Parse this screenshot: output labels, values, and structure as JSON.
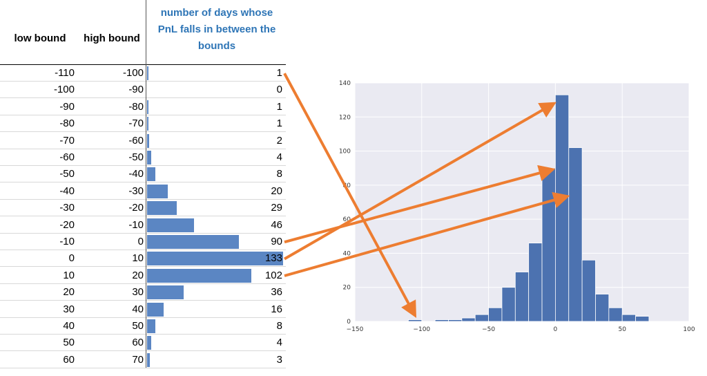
{
  "table": {
    "headers": {
      "low": "low bound",
      "high": "high bound",
      "count_lines": [
        "number of days whose",
        "PnL falls in between the",
        "bounds"
      ]
    },
    "rows": [
      {
        "low": "-110",
        "high": "-100",
        "count": "1"
      },
      {
        "low": "-100",
        "high": "-90",
        "count": "0"
      },
      {
        "low": "-90",
        "high": "-80",
        "count": "1"
      },
      {
        "low": "-80",
        "high": "-70",
        "count": "1"
      },
      {
        "low": "-70",
        "high": "-60",
        "count": "2"
      },
      {
        "low": "-60",
        "high": "-50",
        "count": "4"
      },
      {
        "low": "-50",
        "high": "-40",
        "count": "8"
      },
      {
        "low": "-40",
        "high": "-30",
        "count": "20"
      },
      {
        "low": "-30",
        "high": "-20",
        "count": "29"
      },
      {
        "low": "-20",
        "high": "-10",
        "count": "46"
      },
      {
        "low": "-10",
        "high": "0",
        "count": "90"
      },
      {
        "low": "0",
        "high": "10",
        "count": "133"
      },
      {
        "low": "10",
        "high": "20",
        "count": "102"
      },
      {
        "low": "20",
        "high": "30",
        "count": "36"
      },
      {
        "low": "30",
        "high": "40",
        "count": "16"
      },
      {
        "low": "40",
        "high": "50",
        "count": "8"
      },
      {
        "low": "50",
        "high": "60",
        "count": "4"
      },
      {
        "low": "60",
        "high": "70",
        "count": "3"
      }
    ],
    "colors": {
      "header_accent": "#2e75b6",
      "bar": "#5b86c3"
    }
  },
  "chart_data": {
    "type": "bar",
    "subtype": "histogram",
    "bins": [
      {
        "low": -110,
        "high": -100,
        "value": 1
      },
      {
        "low": -100,
        "high": -90,
        "value": 0
      },
      {
        "low": -90,
        "high": -80,
        "value": 1
      },
      {
        "low": -80,
        "high": -70,
        "value": 1
      },
      {
        "low": -70,
        "high": -60,
        "value": 2
      },
      {
        "low": -60,
        "high": -50,
        "value": 4
      },
      {
        "low": -50,
        "high": -40,
        "value": 8
      },
      {
        "low": -40,
        "high": -30,
        "value": 20
      },
      {
        "low": -30,
        "high": -20,
        "value": 29
      },
      {
        "low": -20,
        "high": -10,
        "value": 46
      },
      {
        "low": -10,
        "high": 0,
        "value": 90
      },
      {
        "low": 0,
        "high": 10,
        "value": 133
      },
      {
        "low": 10,
        "high": 20,
        "value": 102
      },
      {
        "low": 20,
        "high": 30,
        "value": 36
      },
      {
        "low": 30,
        "high": 40,
        "value": 16
      },
      {
        "low": 40,
        "high": 50,
        "value": 8
      },
      {
        "low": 50,
        "high": 60,
        "value": 4
      },
      {
        "low": 60,
        "high": 70,
        "value": 3
      }
    ],
    "xlim": [
      -150,
      100
    ],
    "ylim": [
      0,
      140
    ],
    "xticks": [
      "−150",
      "−100",
      "−50",
      "0",
      "50",
      "100"
    ],
    "yticks": [
      "0",
      "20",
      "40",
      "60",
      "80",
      "100",
      "120",
      "140"
    ],
    "grid": true,
    "colors": {
      "background": "#eaeaf2",
      "grid": "#ffffff",
      "bar": "#4c72b0",
      "arrow": "#ed7d31"
    },
    "annotations": [
      {
        "from_row": "-110",
        "to_bin_low": -110
      },
      {
        "from_row": "-10",
        "to_bin_low": 0
      },
      {
        "from_row": "0",
        "to_bin_low": 0
      },
      {
        "from_row": "10",
        "to_bin_low": 10
      }
    ]
  }
}
